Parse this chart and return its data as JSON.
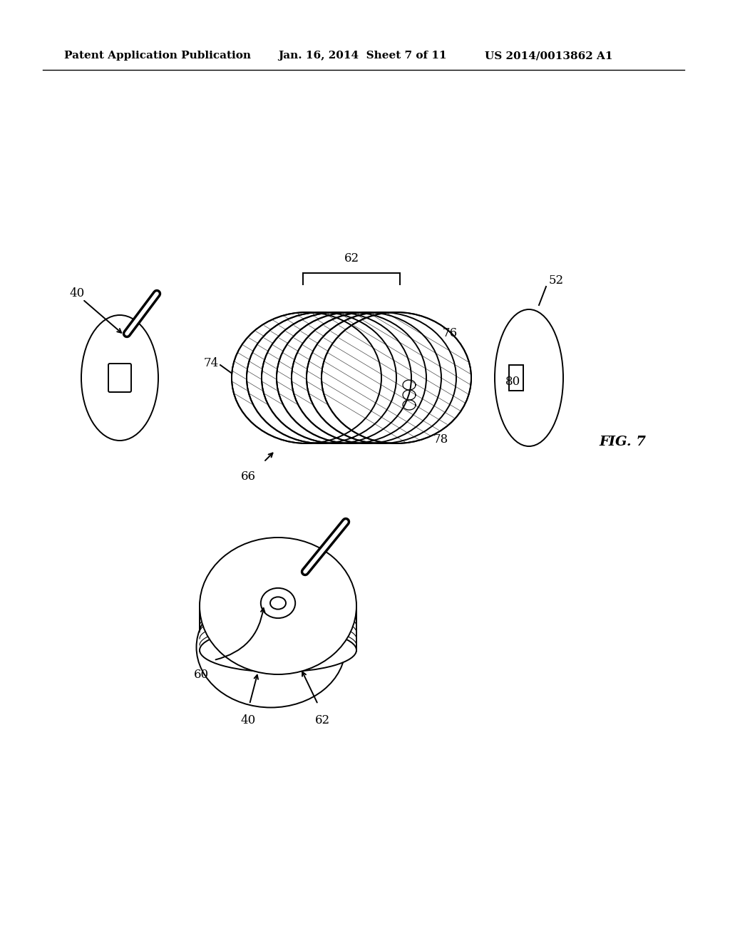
{
  "bg_color": "#ffffff",
  "line_color": "#000000",
  "header_left": "Patent Application Publication",
  "header_mid": "Jan. 16, 2014  Sheet 7 of 11",
  "header_right": "US 2014/0013862 A1",
  "fig7_label": "FIG. 7"
}
